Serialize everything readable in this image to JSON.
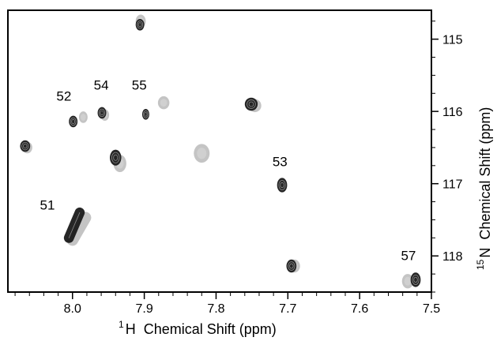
{
  "chart_data": {
    "type": "scatter",
    "title": "",
    "xlabel": {
      "superscript": "1",
      "text": "H  Chemical Shift (ppm)"
    },
    "ylabel": {
      "superscript": "15",
      "text": "N  Chemical Shift (ppm)"
    },
    "xlim": [
      8.09,
      7.5
    ],
    "ylim": [
      114.6,
      118.5
    ],
    "x_reversed": true,
    "y_reversed": true,
    "y_axis_position": "right",
    "grid": false,
    "xticks": [
      8.0,
      7.9,
      7.8,
      7.7,
      7.6,
      7.5
    ],
    "xtick_labels": [
      "8.0",
      "7.9",
      "7.8",
      "7.7",
      "7.6",
      "7.5"
    ],
    "yticks": [
      115,
      116,
      117,
      118
    ],
    "ytick_labels": [
      "115",
      "116",
      "117",
      "118"
    ],
    "series": [
      {
        "spectrum": "light",
        "color": "#b0b0b0",
        "points": [
          {
            "x": 7.905,
            "y": 114.75,
            "rx": 0.007,
            "ry": 0.09
          },
          {
            "x": 7.985,
            "y": 116.08,
            "rx": 0.006,
            "ry": 0.08
          },
          {
            "x": 7.955,
            "y": 116.05,
            "rx": 0.006,
            "ry": 0.08
          },
          {
            "x": 7.873,
            "y": 115.88,
            "rx": 0.008,
            "ry": 0.09
          },
          {
            "x": 8.063,
            "y": 116.5,
            "rx": 0.007,
            "ry": 0.08
          },
          {
            "x": 7.934,
            "y": 116.72,
            "rx": 0.009,
            "ry": 0.12
          },
          {
            "x": 7.82,
            "y": 116.58,
            "rx": 0.011,
            "ry": 0.13
          },
          {
            "x": 7.746,
            "y": 115.92,
            "rx": 0.009,
            "ry": 0.09
          },
          {
            "x": 7.691,
            "y": 118.14,
            "rx": 0.008,
            "ry": 0.09
          },
          {
            "x": 7.533,
            "y": 118.35,
            "rx": 0.008,
            "ry": 0.1
          }
        ],
        "streak": {
          "x1": 7.982,
          "y1": 117.47,
          "x2": 8.0,
          "y2": 117.78,
          "width": 0.016
        }
      },
      {
        "spectrum": "dark",
        "color": "#1a1a1a",
        "points": [
          {
            "x": 7.906,
            "y": 114.8,
            "rx": 0.006,
            "ry": 0.08
          },
          {
            "x": 7.999,
            "y": 116.14,
            "rx": 0.006,
            "ry": 0.08
          },
          {
            "x": 7.959,
            "y": 116.02,
            "rx": 0.006,
            "ry": 0.08
          },
          {
            "x": 7.898,
            "y": 116.04,
            "rx": 0.005,
            "ry": 0.075
          },
          {
            "x": 8.066,
            "y": 116.48,
            "rx": 0.007,
            "ry": 0.08
          },
          {
            "x": 7.94,
            "y": 116.64,
            "rx": 0.008,
            "ry": 0.11
          },
          {
            "x": 7.751,
            "y": 115.9,
            "rx": 0.009,
            "ry": 0.09
          },
          {
            "x": 7.708,
            "y": 117.02,
            "rx": 0.007,
            "ry": 0.1
          },
          {
            "x": 7.695,
            "y": 118.14,
            "rx": 0.007,
            "ry": 0.09
          },
          {
            "x": 7.522,
            "y": 118.33,
            "rx": 0.007,
            "ry": 0.1
          }
        ],
        "streak": {
          "x1": 7.99,
          "y1": 117.4,
          "x2": 8.005,
          "y2": 117.75,
          "width": 0.014
        }
      }
    ],
    "annotations": [
      {
        "text": "52",
        "x": 8.012,
        "y": 115.85
      },
      {
        "text": "54",
        "x": 7.96,
        "y": 115.7
      },
      {
        "text": "55",
        "x": 7.907,
        "y": 115.7
      },
      {
        "text": "53",
        "x": 7.711,
        "y": 116.76
      },
      {
        "text": "51",
        "x": 8.035,
        "y": 117.36
      },
      {
        "text": "57",
        "x": 7.532,
        "y": 118.06
      }
    ]
  }
}
